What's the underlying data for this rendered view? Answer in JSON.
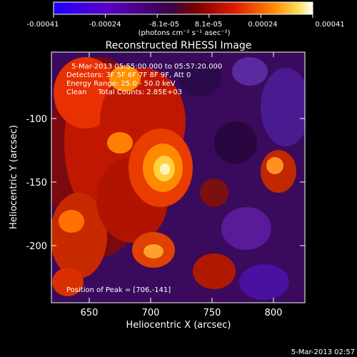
{
  "colorbar": {
    "tick_labels": [
      "-0.00041",
      "-0.00024",
      "-8.1e-05",
      "8.1e-05",
      "0.00024",
      "0.00041"
    ],
    "units_label": "(photons cm⁻² s⁻¹ asec⁻²)",
    "colors": [
      "#1c00ff",
      "#5a00c8",
      "#3a004a",
      "#7a0000",
      "#e01a00",
      "#ff8a00",
      "#ffe060",
      "#ffffff"
    ]
  },
  "title": "Reconstructed RHESSI Image",
  "info_lines": [
    "5-Mar-2013 05:55:00.000 to 05:57:20.000",
    "Detectors: 3F 5F 6F 7F 8F 9F, Att 0",
    "Energy Range: 25.0 - 50.0 keV",
    "Clean     Total Counts: 2.85E+03"
  ],
  "peak_label": "Position of Peak = [706,-141]",
  "x_axis": {
    "label": "Heliocentric X (arcsec)",
    "ticks": [
      "650",
      "700",
      "750",
      "800"
    ]
  },
  "y_axis": {
    "label": "Heliocentric Y (arcsec)",
    "ticks": [
      "-100",
      "-150",
      "-200"
    ]
  },
  "timestamp": "5-Mar-2013 02:57"
}
